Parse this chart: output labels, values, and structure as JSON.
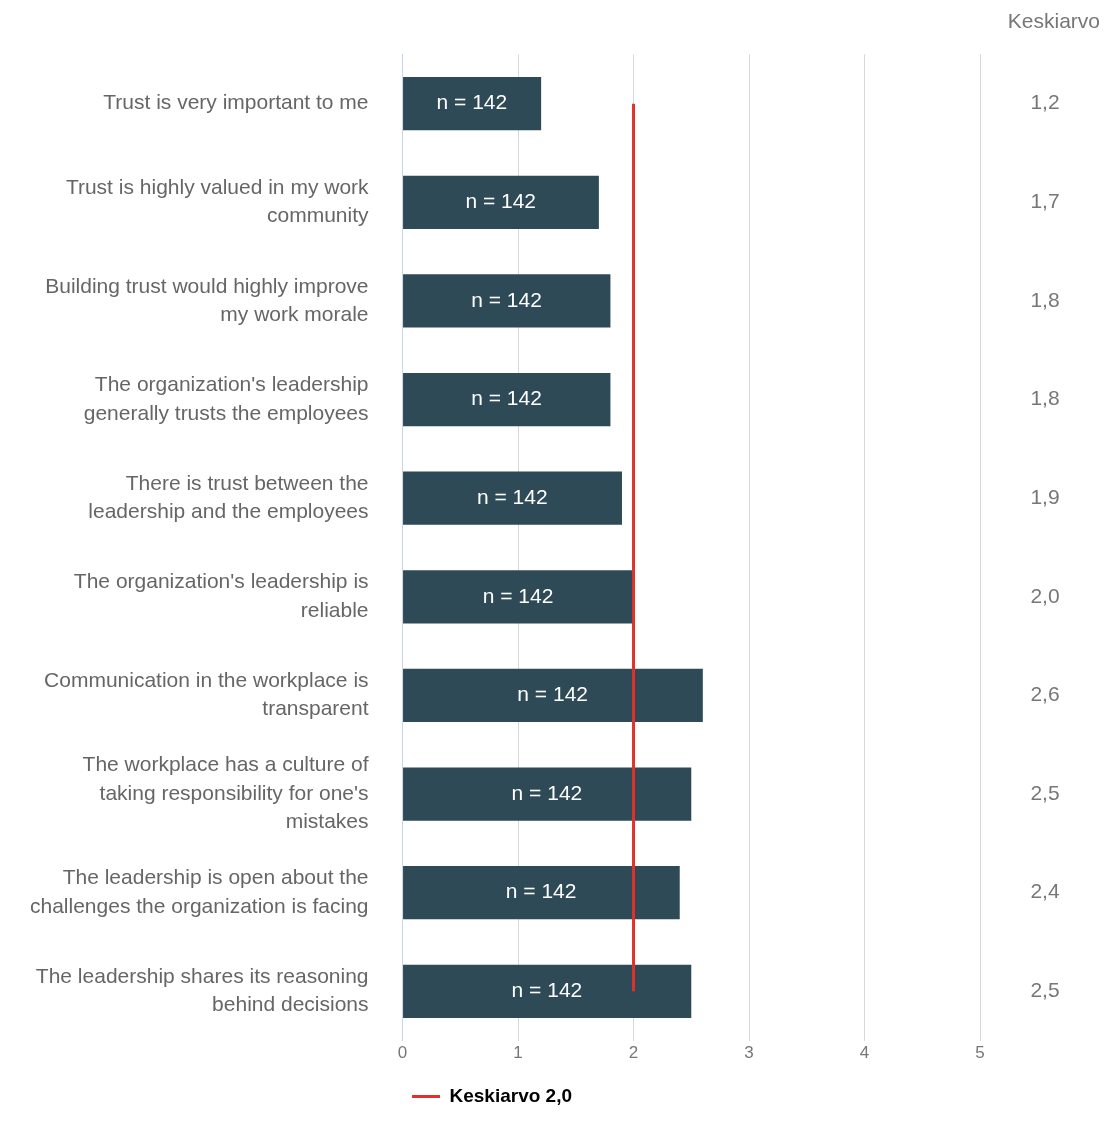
{
  "chart_data": {
    "type": "bar",
    "orientation": "horizontal",
    "categories": [
      "Trust is very important to me",
      "Trust is highly valued in my work community",
      "Building trust would highly improve my work morale",
      "The organization's leadership generally trusts the employees",
      "There is trust between the leadership and the employees",
      "The organization's leadership is reliable",
      "Communication in the workplace is transparent",
      "The workplace has a culture of taking responsibility for one's mistakes",
      "The leadership is open about the challenges the organization is facing",
      "The leadership shares its reasoning behind decisions"
    ],
    "values": [
      1.2,
      1.7,
      1.8,
      1.8,
      1.9,
      2.0,
      2.6,
      2.5,
      2.4,
      2.5
    ],
    "value_labels": [
      "1,2",
      "1,7",
      "1,8",
      "1,8",
      "1,9",
      "2,0",
      "2,6",
      "2,5",
      "2,4",
      "2,5"
    ],
    "color": "#2e4a57",
    "xlim": [
      0,
      5
    ],
    "xticks": [
      0,
      1,
      2,
      3,
      4,
      5
    ],
    "grid": "x",
    "legend": "bottom",
    "ref_lines": [
      {
        "axis": "x",
        "value": 2.0,
        "label": "Keskiarvo 2,0",
        "color": "#e0312b"
      }
    ],
    "annotations": [
      "Keskiarvo",
      "n = 142",
      "n = 142",
      "n = 142",
      "n = 142",
      "n = 142",
      "n = 142",
      "n = 142",
      "n = 142",
      "n = 142",
      "n = 142"
    ]
  }
}
